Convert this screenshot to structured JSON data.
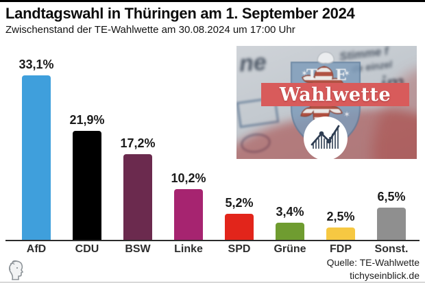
{
  "header": {
    "title": "Landtagswahl in Thüringen am 1. September 2024",
    "subtitle": "Zwischenstand der TE-Wahlwette am 30.08.2024 um 17:00 Uhr"
  },
  "chart_data": {
    "type": "bar",
    "title": "Landtagswahl in Thüringen am 1. September 2024",
    "subtitle": "Zwischenstand der TE-Wahlwette am 30.08.2024 um 17:00 Uhr",
    "categories": [
      "AfD",
      "CDU",
      "BSW",
      "Linke",
      "SPD",
      "Grüne",
      "FDP",
      "Sonst."
    ],
    "values": [
      33.1,
      21.9,
      17.2,
      10.2,
      5.2,
      3.4,
      2.5,
      6.5
    ],
    "value_labels": [
      "33,1%",
      "21,9%",
      "17,2%",
      "10,2%",
      "5,2%",
      "3,4%",
      "2,5%",
      "6,5%"
    ],
    "bar_colors": [
      "#3f9fdc",
      "#000000",
      "#6b2a4e",
      "#a62470",
      "#e2251b",
      "#6f9c30",
      "#f6c842",
      "#8f8f8f"
    ],
    "xlabel": "",
    "ylabel": "",
    "ylim": [
      0,
      36
    ],
    "grid": false,
    "legend": false,
    "unit": "%"
  },
  "inset_image": {
    "banner_text": "Wahlwette",
    "crest_letter_left": "T",
    "crest_letter_right": "E",
    "ballot_words": {
      "w1": "ne",
      "w2": "Stimme f",
      "w3": "de einzel",
      "w4": "im"
    },
    "banner_color": "#d85b5b",
    "shield_color": "#7e9cba"
  },
  "footer": {
    "source_line1": "Quelle: TE-Wahlwette",
    "source_line2": "tichyseinblick.de"
  }
}
